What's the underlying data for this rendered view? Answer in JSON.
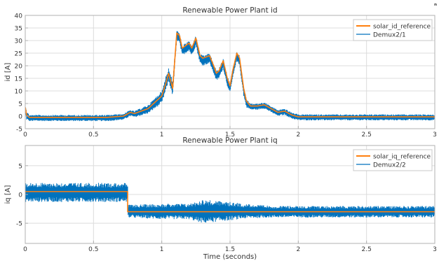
{
  "corner_glyph": "ⁿ",
  "colors": {
    "figure_bg": "#ffffff",
    "axes_bg": "#ffffff",
    "grid": "#dcdcdc",
    "axis_line": "#b0b0b0",
    "reference_line": "#ff7f0e",
    "measured_band": "#0072bd",
    "text": "#333333"
  },
  "chart_data": [
    {
      "type": "line",
      "title": "Renewable Power Plant id",
      "xlabel": "",
      "ylabel": "id [A]",
      "xlim": [
        0,
        3
      ],
      "ylim": [
        -5,
        40
      ],
      "xticks": [
        0,
        0.5,
        1,
        1.5,
        2,
        2.5,
        3
      ],
      "yticks": [
        -5,
        0,
        5,
        10,
        15,
        20,
        25,
        30,
        35,
        40
      ],
      "grid": true,
      "legend": "top-right",
      "series": [
        {
          "name": "solar_id_reference",
          "style": "line",
          "x": [
            0,
            0.01,
            0.03,
            0.1,
            0.3,
            0.6,
            0.72,
            0.77,
            0.8,
            0.9,
            1.0,
            1.03,
            1.05,
            1.08,
            1.11,
            1.13,
            1.15,
            1.2,
            1.22,
            1.25,
            1.28,
            1.3,
            1.35,
            1.38,
            1.4,
            1.42,
            1.45,
            1.48,
            1.5,
            1.52,
            1.55,
            1.57,
            1.6,
            1.62,
            1.65,
            1.7,
            1.75,
            1.8,
            1.85,
            1.9,
            1.95,
            2.0,
            2.5,
            3.0
          ],
          "y": [
            3.5,
            0.5,
            -0.5,
            -0.5,
            -0.5,
            -0.5,
            0,
            1.5,
            1,
            3,
            8,
            13,
            17,
            11,
            33,
            32,
            27,
            29,
            27,
            31,
            24,
            23,
            24,
            20,
            17,
            18,
            22,
            15,
            12,
            18,
            25,
            23,
            11,
            6,
            4,
            4,
            4.5,
            3,
            1.5,
            2,
            0.5,
            -0.3,
            -0.3,
            -0.3
          ]
        },
        {
          "name": "Demux2/1",
          "style": "band",
          "x": [
            0,
            0.01,
            0.03,
            0.1,
            0.3,
            0.6,
            0.72,
            0.77,
            0.8,
            0.9,
            1.0,
            1.03,
            1.05,
            1.08,
            1.11,
            1.13,
            1.15,
            1.2,
            1.22,
            1.25,
            1.28,
            1.3,
            1.35,
            1.38,
            1.4,
            1.42,
            1.45,
            1.48,
            1.5,
            1.52,
            1.55,
            1.57,
            1.6,
            1.62,
            1.65,
            1.7,
            1.75,
            1.8,
            1.85,
            1.9,
            1.95,
            2.0,
            2.5,
            3.0
          ],
          "y_low": [
            0.5,
            -1.5,
            -2,
            -2,
            -2,
            -2,
            -1.5,
            0,
            -0.5,
            1,
            5,
            10,
            14,
            8,
            30,
            29,
            24,
            26,
            24,
            28,
            21,
            20,
            21,
            17,
            14,
            15,
            19,
            12,
            9,
            15,
            22,
            20,
            8,
            3.5,
            2.5,
            2.5,
            3,
            1.5,
            0,
            0.5,
            -1,
            -1.7,
            -1.7,
            -1.7
          ],
          "y_high": [
            5.5,
            2,
            0.5,
            0.5,
            0.5,
            0.5,
            1,
            2.5,
            2,
            4.5,
            10,
            16,
            19,
            14,
            34,
            33,
            28,
            30,
            28,
            32,
            25,
            24,
            25,
            21,
            18,
            19,
            23,
            16,
            13,
            19,
            26,
            24,
            12,
            7,
            5,
            5,
            5.5,
            4,
            2.5,
            3,
            1.5,
            0.7,
            0.7,
            0.7
          ]
        }
      ]
    },
    {
      "type": "line",
      "title": "Renewable Power Plant iq",
      "xlabel": "Time (seconds)",
      "ylabel": "iq [A]",
      "xlim": [
        0,
        3
      ],
      "ylim": [
        -8.5,
        8.5
      ],
      "xticks": [
        0,
        0.5,
        1,
        1.5,
        2,
        2.5,
        3
      ],
      "yticks": [
        -5,
        0,
        5
      ],
      "grid": true,
      "legend": "top-right",
      "series": [
        {
          "name": "solar_iq_reference",
          "style": "line",
          "x": [
            0,
            0.75,
            0.75,
            3.0
          ],
          "y": [
            0.5,
            0.5,
            -3,
            -3
          ]
        },
        {
          "name": "Demux2/2",
          "style": "band",
          "x": [
            0,
            0.75,
            0.75,
            1.0,
            1.2,
            1.3,
            1.5,
            1.6,
            1.8,
            2.0,
            3.0
          ],
          "y_low": [
            -1.3,
            -1.3,
            -4,
            -4.3,
            -4.3,
            -5,
            -4.5,
            -4.2,
            -4,
            -4,
            -4
          ],
          "y_high": [
            2,
            2,
            -1.8,
            -1.6,
            -1.6,
            -0.9,
            -1.3,
            -1.6,
            -2,
            -2,
            -2
          ]
        }
      ]
    }
  ]
}
